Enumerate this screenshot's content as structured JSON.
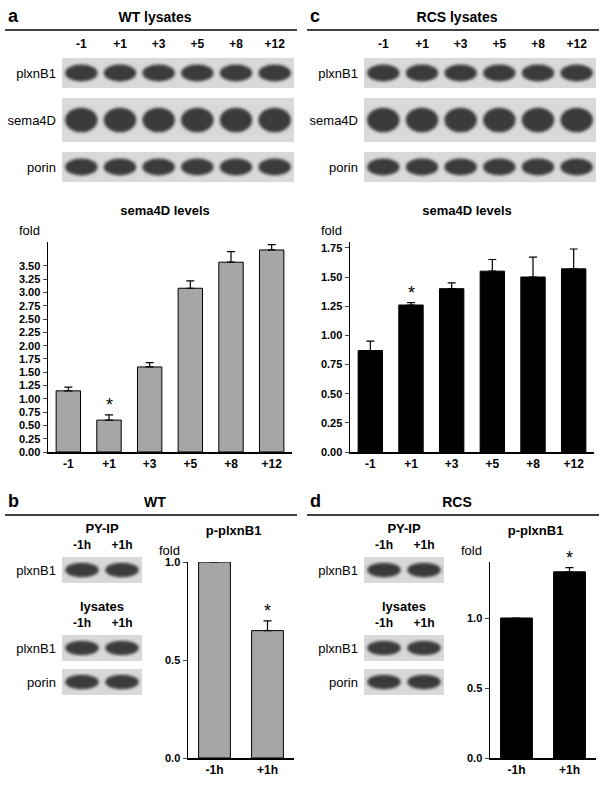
{
  "chart_data": [
    {
      "type": "bar",
      "title": "sema4D levels",
      "y_label": "fold",
      "categories": [
        "-1",
        "+1",
        "+3",
        "+5",
        "+8",
        "+12"
      ],
      "values": [
        1.15,
        0.6,
        1.6,
        3.08,
        3.57,
        3.8
      ],
      "errors": [
        0.07,
        0.1,
        0.08,
        0.14,
        0.2,
        0.1
      ],
      "color": "#a6a6a6",
      "grid": false,
      "ylim": [
        0,
        3.95
      ],
      "yticks": [
        {
          "value": 0,
          "label": "0.00"
        },
        0.25,
        {
          "value": 0.5,
          "label": "0.50"
        },
        0.75,
        {
          "value": 1,
          "label": "1.00"
        },
        1.25,
        {
          "value": 1.5,
          "label": "1.50"
        },
        1.75,
        {
          "value": 2,
          "label": "2.00"
        },
        2.25,
        {
          "value": 2.5,
          "label": "2.50"
        },
        2.75,
        {
          "value": 3,
          "label": "3.00"
        },
        3.25,
        {
          "value": 3.5,
          "label": "3.50"
        }
      ],
      "annotations": [
        {
          "category": "+1",
          "text": "*"
        }
      ]
    },
    {
      "type": "bar",
      "title": "sema4D levels",
      "y_label": "fold",
      "categories": [
        "-1",
        "+1",
        "+3",
        "+5",
        "+8",
        "+12"
      ],
      "values": [
        0.87,
        1.26,
        1.4,
        1.55,
        1.5,
        1.57
      ],
      "errors": [
        0.08,
        0.02,
        0.05,
        0.1,
        0.17,
        0.17
      ],
      "color": "#000000",
      "grid": false,
      "ylim": [
        0,
        1.8
      ],
      "yticks": [
        {
          "value": 0,
          "label": "0.00"
        },
        0.25,
        {
          "value": 0.5,
          "label": "0.50"
        },
        0.75,
        {
          "value": 1,
          "label": "1.00"
        },
        1.25,
        {
          "value": 1.5,
          "label": "1.50"
        },
        1.75
      ],
      "annotations": [
        {
          "category": "+1",
          "text": "*"
        }
      ]
    },
    {
      "type": "bar",
      "title": "p-plxnB1",
      "y_label": "fold",
      "categories": [
        "-1h",
        "+1h"
      ],
      "values": [
        1.0,
        0.65
      ],
      "errors": [
        0,
        0.05
      ],
      "color": "#a6a6a6",
      "grid": false,
      "ylim": [
        0,
        1.0
      ],
      "yticks": [
        {
          "value": 0,
          "label": "0.0"
        },
        0.5,
        {
          "value": 1,
          "label": "1.0"
        }
      ],
      "annotations": [
        {
          "category": "+1h",
          "text": "*"
        }
      ]
    },
    {
      "type": "bar",
      "title": "p-plxnB1",
      "y_label": "fold",
      "categories": [
        "-1h",
        "+1h"
      ],
      "values": [
        1.0,
        1.33
      ],
      "errors": [
        0,
        0.03
      ],
      "color": "#000000",
      "grid": false,
      "ylim": [
        0,
        1.4
      ],
      "yticks": [
        {
          "value": 0,
          "label": "0.0"
        },
        0.5,
        {
          "value": 1,
          "label": "1.0"
        }
      ],
      "annotations": [
        {
          "category": "+1h",
          "text": "*"
        }
      ]
    }
  ],
  "blots": [
    {
      "panel": "a",
      "title": "WT lysates",
      "groups": [
        {
          "lanes": [
            "-1",
            "+1",
            "+3",
            "+5",
            "+8",
            "+12"
          ],
          "rows": [
            "plxnB1",
            "sema4D",
            "porin"
          ]
        }
      ]
    },
    {
      "panel": "c",
      "title": "RCS lysates",
      "groups": [
        {
          "lanes": [
            "-1",
            "+1",
            "+3",
            "+5",
            "+8",
            "+12"
          ],
          "rows": [
            "plxnB1",
            "sema4D",
            "porin"
          ]
        }
      ]
    },
    {
      "panel": "b",
      "title": "WT",
      "groups": [
        {
          "label": "PY-IP",
          "lanes": [
            "-1h",
            "+1h"
          ],
          "rows": [
            "plxnB1"
          ]
        },
        {
          "label": "lysates",
          "lanes": [
            "-1h",
            "+1h"
          ],
          "rows": [
            "plxnB1",
            "porin"
          ]
        }
      ]
    },
    {
      "panel": "d",
      "title": "RCS",
      "groups": [
        {
          "label": "PY-IP",
          "lanes": [
            "-1h",
            "+1h"
          ],
          "rows": [
            "plxnB1"
          ]
        },
        {
          "label": "lysates",
          "lanes": [
            "-1h",
            "+1h"
          ],
          "rows": [
            "plxnB1",
            "porin"
          ]
        }
      ]
    }
  ]
}
